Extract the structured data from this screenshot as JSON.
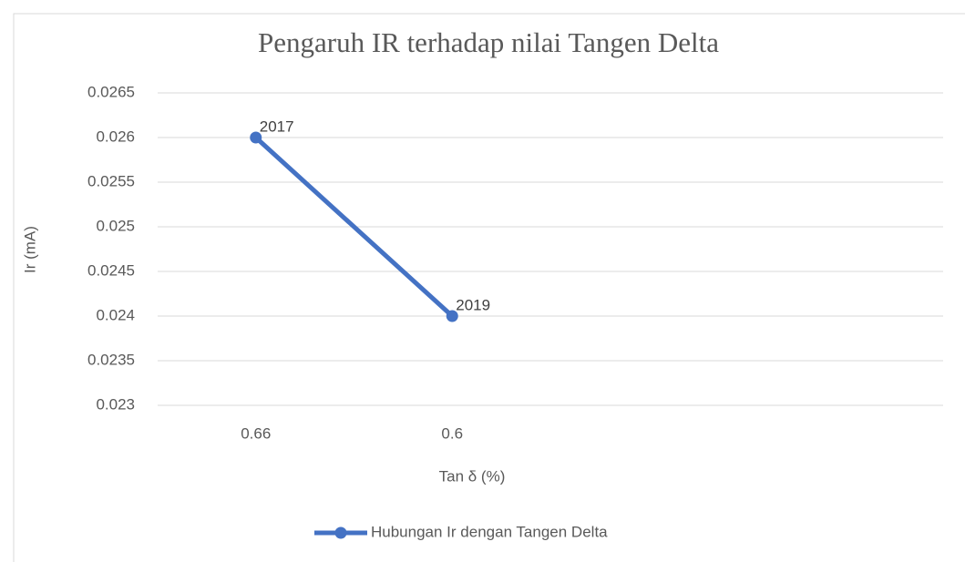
{
  "chart_data": {
    "type": "line",
    "title": "Pengaruh IR terhadap nilai Tangen Delta",
    "x_label": "Tan δ (%)",
    "y_label": "Ir (mA)",
    "categories": [
      "0.66",
      "0.6",
      null,
      null
    ],
    "series": [
      {
        "name": "Hubungan Ir dengan Tangen Delta",
        "color": "#4472c4",
        "values": [
          0.026,
          0.024,
          null,
          null
        ],
        "point_labels": [
          "2017",
          "2019",
          null,
          null
        ]
      }
    ],
    "ylim": [
      0.023,
      0.0265
    ],
    "yticks": [
      0.023,
      0.0235,
      0.024,
      0.0245,
      0.025,
      0.0255,
      0.026,
      0.0265
    ],
    "grid": true,
    "legend": "bottom"
  }
}
